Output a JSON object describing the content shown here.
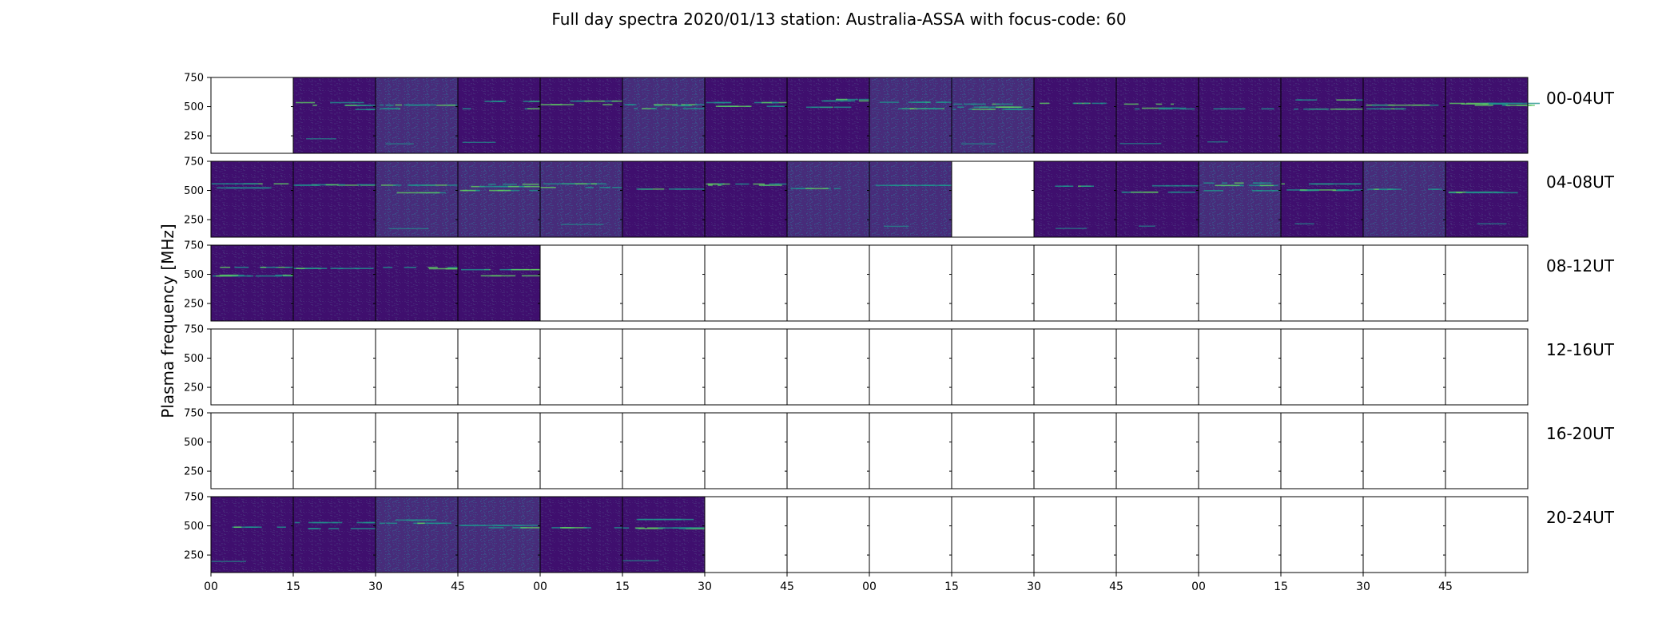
{
  "title": "Full day spectra 2020/01/13 station: Australia-ASSA with focus-code: 60",
  "chart_data": {
    "type": "heatmap",
    "title": "Full day spectra 2020/01/13 station: Australia-ASSA with focus-code: 60",
    "ylabel": "Plasma frequency [MHz]",
    "xlabel": "",
    "ylim": [
      100,
      750
    ],
    "yticks": [
      250,
      500,
      750
    ],
    "xticks": [
      "00",
      "15",
      "30",
      "45",
      "00",
      "15",
      "30",
      "45",
      "00",
      "15",
      "30",
      "45",
      "00",
      "15",
      "30",
      "45"
    ],
    "panel_minutes": 15,
    "colormap": "viridis",
    "rows": [
      {
        "label": "00-04UT",
        "panels": [
          0,
          1,
          1,
          1,
          1,
          1,
          1,
          1,
          1,
          1,
          1,
          1,
          1,
          1,
          1,
          1
        ]
      },
      {
        "label": "04-08UT",
        "panels": [
          1,
          1,
          1,
          1,
          1,
          1,
          1,
          1,
          1,
          0,
          1,
          1,
          1,
          1,
          1,
          1
        ]
      },
      {
        "label": "08-12UT",
        "panels": [
          1,
          1,
          1,
          1,
          0,
          0,
          0,
          0,
          0,
          0,
          0,
          0,
          0,
          0,
          0,
          0
        ]
      },
      {
        "label": "12-16UT",
        "panels": [
          0,
          0,
          0,
          0,
          0,
          0,
          0,
          0,
          0,
          0,
          0,
          0,
          0,
          0,
          0,
          0
        ]
      },
      {
        "label": "16-20UT",
        "panels": [
          0,
          0,
          0,
          0,
          0,
          0,
          0,
          0,
          0,
          0,
          0,
          0,
          0,
          0,
          0,
          0
        ]
      },
      {
        "label": "20-24UT",
        "panels": [
          1,
          1,
          1,
          1,
          1,
          1,
          0,
          0,
          0,
          0,
          0,
          0,
          0,
          0,
          0,
          0
        ]
      }
    ],
    "grid": false,
    "colors": {
      "background_dark": "#3f0f6e",
      "background_mid": "#472c7a",
      "noise_light": "#3b528b",
      "signal_line": "#21918c",
      "signal_bright": "#5ec962",
      "empty_panel": "#ffffff"
    }
  }
}
